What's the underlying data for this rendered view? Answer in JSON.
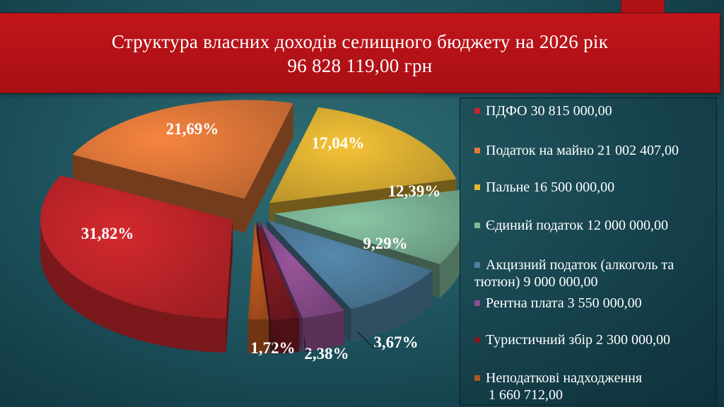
{
  "title_line1": "Структура власних доходів селищного бюджету на 2026 рік",
  "title_line2": "96 828 119,00 грн",
  "chart_data": {
    "type": "pie",
    "title": "Структура власних доходів селищного бюджету на 2026 рік",
    "subtitle": "96 828 119,00 грн",
    "legend_position": "right",
    "slices": [
      {
        "name": "ПДФО 30 815 000,00",
        "value": 30815000.0,
        "percent_label": "31,82%",
        "color": "#c4262b"
      },
      {
        "name": "Податок на майно 21 002 407,00",
        "value": 21002407.0,
        "percent_label": "21,69%",
        "color": "#e57a3a"
      },
      {
        "name": "Пальне 16 500 000,00",
        "value": 16500000.0,
        "percent_label": "17,04%",
        "color": "#e3b533"
      },
      {
        "name": "Єдиний податок 12 000 000,00",
        "value": 12000000.0,
        "percent_label": "12,39%",
        "color": "#7fb89a"
      },
      {
        "name": "Акцизний податок (алкоголь та тютюн)   9 000 000,00",
        "value": 9000000.0,
        "percent_label": "9,29%",
        "color": "#4f7fa0"
      },
      {
        "name": "Рентна плата 3 550 000,00",
        "value": 3550000.0,
        "percent_label": "3,67%",
        "color": "#8f4f90"
      },
      {
        "name": "Туристичний збір 2 300 000,00",
        "value": 2300000.0,
        "percent_label": "2,38%",
        "color": "#7a1a22"
      },
      {
        "name": "Неподаткові надходження 1 660 712,00",
        "value": 1660712.0,
        "percent_label": "1,72%",
        "color": "#b4561e"
      }
    ]
  },
  "legend": [
    {
      "line1": "ПДФО 30 815 000,00",
      "line2": "",
      "color": "#c4262b"
    },
    {
      "line1": "Податок на майно 21 002 407,00",
      "line2": "",
      "color": "#e57a3a"
    },
    {
      "line1": "Пальне 16 500 000,00",
      "line2": "",
      "color": "#e3b533"
    },
    {
      "line1": "Єдиний податок 12 000 000,00",
      "line2": "",
      "color": "#7fb89a"
    },
    {
      "line1": "Акцизний податок (алкоголь та",
      "line2": "тютюн)   9 000 000,00",
      "color": "#4f7fa0"
    },
    {
      "line1": "Рентна плата 3 550 000,00",
      "line2": "",
      "color": "#8f4f90"
    },
    {
      "line1": "Туристичний збір 2 300 000,00",
      "line2": "",
      "color": "#7a1a22"
    },
    {
      "line1": "Неподаткові надходження",
      "line2": "1 660 712,00",
      "color": "#b4561e"
    }
  ]
}
